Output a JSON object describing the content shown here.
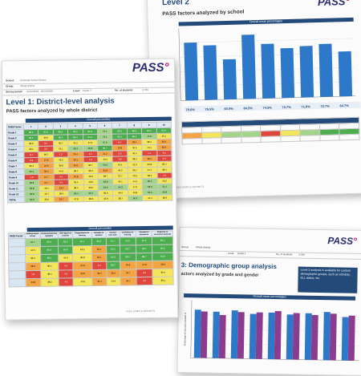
{
  "colors": {
    "bar_blue": "#2d78c8",
    "bar_purple": "#8a3d8f",
    "header_navy": "#244a7a",
    "green": "#4cae4f",
    "red": "#e0463c",
    "yellow": "#f4e65a",
    "orange": "#f3a544"
  },
  "logo": {
    "text": "PASS",
    "dots": "°"
  },
  "back_page": {
    "title": "Level 2",
    "subtitle": "PASS factors analyzed by school",
    "chart_title": "Overall mean percentages",
    "values": [
      "79.6%",
      "76.5%",
      "60.9%",
      "84.5%",
      "74.5%",
      "70.7%",
      "71.8%",
      "72.7%",
      "64.7%"
    ],
    "footer": "PASS SAMPLE REPORTS"
  },
  "front_page": {
    "info": {
      "school_label": "School:",
      "school_value": "Clarkside School District",
      "group_label": "Group:",
      "group_value": "Whole district",
      "period_label": "Survey period:",
      "period_value": "02/12/2018 - 05/23/2018",
      "level_label": "Level:",
      "level_value": "PASS-T",
      "students_label": "No. of students:",
      "students_value": "4,789"
    },
    "heading": "Level 1: District-level analysis",
    "subheading": "PASS factors analyzed by whole district",
    "table_title": "Overall percentiles",
    "col_header": "PASS Factor",
    "rows": [
      "Grade 1",
      "Grade 2",
      "Grade 3",
      "Grade 4",
      "Grade 5",
      "Grade 6",
      "Grade 7",
      "Grade 8",
      "Grade 9",
      "Grade 10",
      "Grade 11",
      "Grade 12",
      "TOTAL"
    ],
    "table1_values": [
      [
        "85.2",
        "87.6",
        "86.9",
        "80.4",
        "81.2",
        "72.1",
        "86.9",
        "89.9",
        "84.2",
        "82.9"
      ],
      [
        "80.2",
        "39.6",
        "86.9",
        "80.4",
        "91.2",
        "72.1",
        "85.9",
        "88.6",
        "74.8",
        "45.1"
      ],
      [
        "39.6",
        "8.4",
        "45.7",
        "41.2",
        "47.6",
        "57.6",
        "9.4",
        "33.4",
        "38.4",
        "33.4"
      ],
      [
        "39.1",
        "8.4",
        "42.1",
        "63.4",
        "52.8",
        "84.7",
        "23.8",
        "45.5",
        "44.1",
        "33.4"
      ],
      [
        "11.7",
        "38.7",
        "1.2",
        "26.4",
        "6.4",
        "21.2",
        "8.3",
        "40.4",
        "1.1",
        "6.4"
      ],
      [
        "3.3",
        "27.8",
        "43.0",
        "23.1",
        "1.9",
        "43.4",
        "3.8",
        "38.2",
        "28.1",
        "3.4"
      ],
      [
        "35.4",
        "24.5",
        "38.8",
        "34.0",
        "36.7",
        "50.9",
        "43.4",
        "41.0",
        "39.8",
        "35.4"
      ],
      [
        "52.4",
        "33.4",
        "44.9",
        "38.7",
        "36.0",
        "34.9",
        "49.0",
        "36.7",
        "44.7",
        "38.4"
      ],
      [
        "1.9",
        "21.7",
        "8.4",
        "34.8",
        "43.0",
        "38.7",
        "37.7",
        "40.2",
        "39.4",
        "1.9"
      ],
      [
        "55.8",
        "21.7",
        "8.4",
        "35.4",
        "43.0",
        "55.8",
        "46.1",
        "44.4",
        "50.4",
        "43.2"
      ],
      [
        "55.8",
        "43.4",
        "23.4",
        "38.4",
        "39.6",
        "64.9",
        "54.3",
        "47.5",
        "53.9",
        "51.4"
      ],
      [
        "59.8",
        "43.7",
        "38.4",
        "50.4",
        "53.7",
        "39.6",
        "49.4",
        "49.8",
        "50.4",
        "55.8"
      ],
      [
        "50.2",
        "35.6",
        "29.7",
        "47.8",
        "38.2",
        "42.8",
        "38.7",
        "56.4",
        "44.4",
        "38.6"
      ]
    ],
    "table2_title": "Overall percentiles",
    "table2_rows": [
      "Feelings about school",
      "Perceived learning capability",
      "Self-regard as a learner",
      "Preparedness for learning",
      "Attitudes to teachers",
      "General work ethic",
      "Confidence in learning",
      "Attitudes to attendance",
      "Response to curriculum demands"
    ],
    "table2_values": [
      [
        "64.7",
        "89.9",
        "83.9",
        "84.1",
        "85.8",
        "91.7",
        "94.9",
        "87.6",
        "85.1"
      ],
      [
        "44.5",
        "89.9",
        "84.8",
        "43.2",
        "33.4",
        "94.9",
        "89.7",
        "98.4",
        "84.6"
      ],
      [
        "39.9",
        "89.4",
        "44.9",
        "39.8",
        "33.4",
        "84.8",
        "89.4",
        "88.7",
        "90.8"
      ],
      [
        "28.6",
        "38.4",
        "4.5",
        "24.8",
        "3.4",
        "89.7",
        "34.8",
        "24.8",
        "28.6"
      ],
      [
        "1.8",
        "38.4",
        "4.5",
        "23.8",
        "33.4",
        "33.4",
        "34.7",
        "8.4",
        "36.4"
      ],
      [
        "29.8",
        "38.2",
        "4.6",
        "44.8",
        "34.4",
        "44.6",
        "34.7",
        "8.4",
        "38.1"
      ]
    ],
    "footer": "PASS SAMPLE REPORTS"
  },
  "right_page": {
    "info": {
      "group_label": "Group:",
      "group_value": "Whole district",
      "level_label": "Level:",
      "level_value": "PASS-T",
      "students_label": "No. of students:",
      "students_value": "4,789"
    },
    "heading": "3: Demographic group analysis",
    "subheading": "actors analyzed by grade and gender",
    "callout": "Level 3 analysis is available for custom demographic groups, such as ethnicity, ELL status, etc.",
    "chart_title": "Overall mean percentages",
    "ylabel": "Percentage of maximum possible %"
  }
}
